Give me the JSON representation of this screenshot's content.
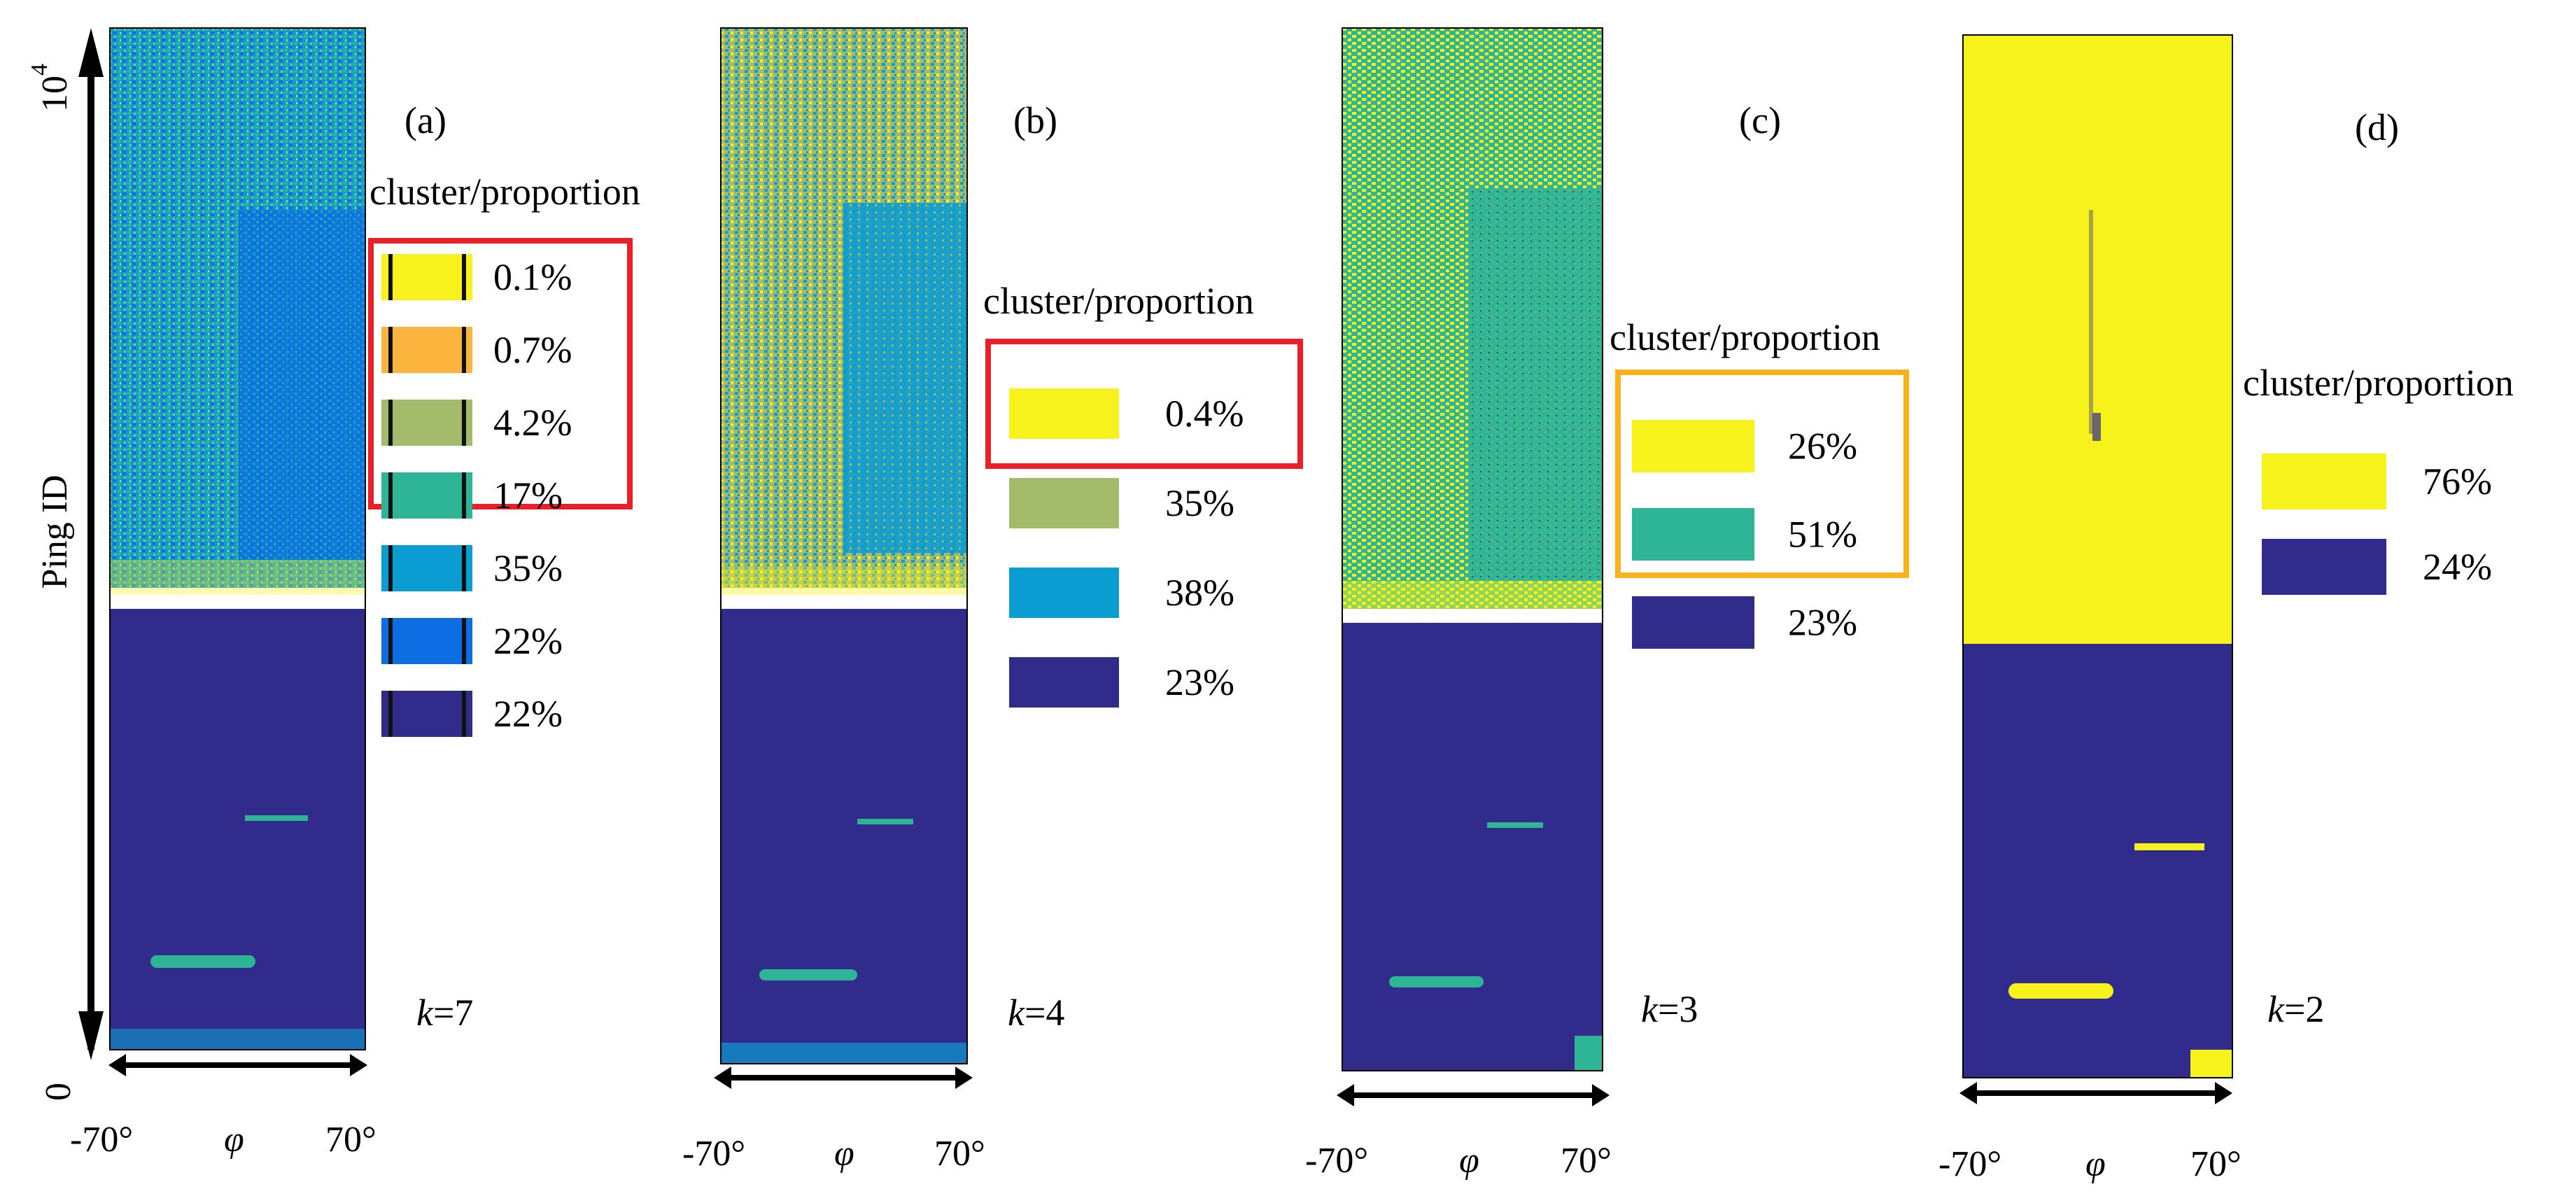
{
  "figure": {
    "y_axis": {
      "label": "Ping ID",
      "top_tick_base": "10",
      "top_tick_exp": "4",
      "bottom_tick": "0"
    },
    "x_axis": {
      "left": "-70°",
      "symbol": "φ",
      "right": "70°"
    },
    "legend_header": "cluster/proportion",
    "colors": {
      "yellow": "#f7f21c",
      "orange": "#fbb53e",
      "olive": "#a3bb6a",
      "teal": "#2db596",
      "cyan": "#0b9cd2",
      "blue": "#0c6ee2",
      "navy": "#312b8b",
      "red_box": "#e8202a",
      "orange_box": "#f6b21f"
    },
    "panels": [
      {
        "id": "a",
        "label": "(a)",
        "k_var": "k",
        "k_value": "=7",
        "legend": [
          {
            "color": "yellow",
            "value": "0.1%"
          },
          {
            "color": "orange",
            "value": "0.7%"
          },
          {
            "color": "olive",
            "value": "4.2%"
          },
          {
            "color": "teal",
            "value": "17%"
          },
          {
            "color": "cyan",
            "value": "35%"
          },
          {
            "color": "blue",
            "value": "22%"
          },
          {
            "color": "navy",
            "value": "22%"
          }
        ],
        "highlighted_count": 3,
        "highlight_color": "red_box"
      },
      {
        "id": "b",
        "label": "(b)",
        "k_var": "k",
        "k_value": "=4",
        "legend": [
          {
            "color": "yellow",
            "value": "0.4%"
          },
          {
            "color": "olive",
            "value": "35%"
          },
          {
            "color": "cyan",
            "value": "38%"
          },
          {
            "color": "navy",
            "value": "23%"
          }
        ],
        "highlighted_count": 1,
        "highlight_color": "red_box"
      },
      {
        "id": "c",
        "label": "(c)",
        "k_var": "k",
        "k_value": "=3",
        "legend": [
          {
            "color": "yellow",
            "value": "26%"
          },
          {
            "color": "teal",
            "value": "51%"
          },
          {
            "color": "navy",
            "value": "23%"
          }
        ],
        "highlighted_count": 2,
        "highlight_color": "orange_box"
      },
      {
        "id": "d",
        "label": "(d)",
        "k_var": "k",
        "k_value": "=2",
        "legend": [
          {
            "color": "yellow",
            "value": "76%"
          },
          {
            "color": "navy",
            "value": "24%"
          }
        ],
        "highlighted_count": 0,
        "highlight_color": ""
      }
    ]
  }
}
